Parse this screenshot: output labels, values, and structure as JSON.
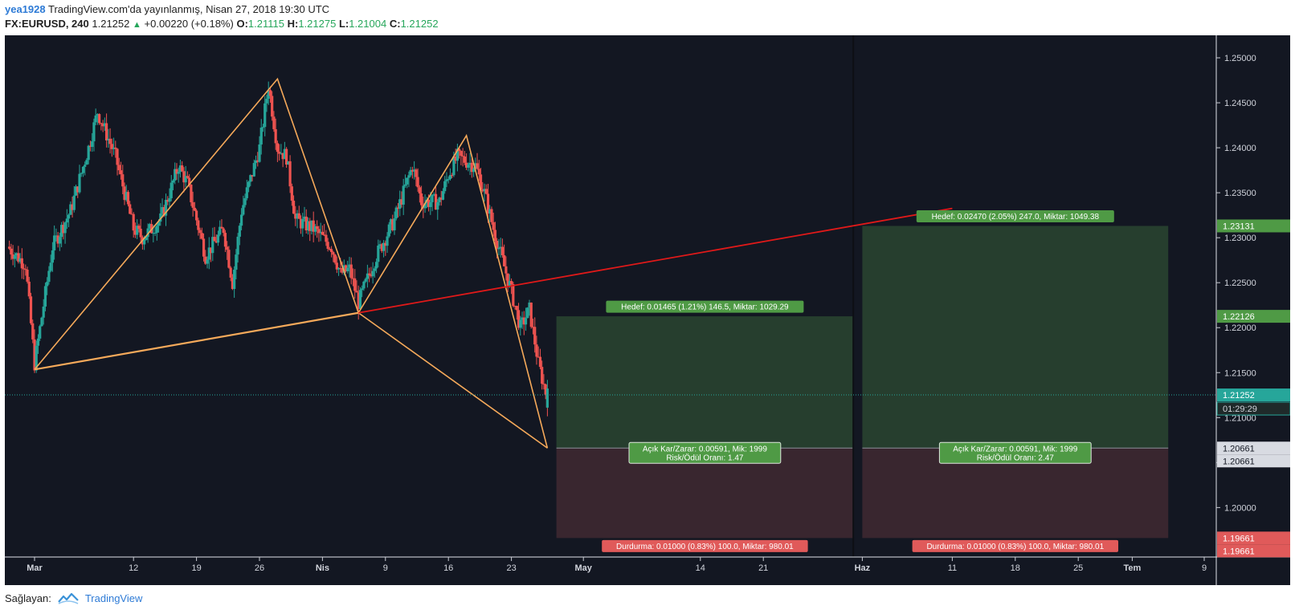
{
  "header": {
    "user": "yea1928",
    "published": "TradingView.com'da yayınlanmış, Nisan 27, 2018 19:30 UTC",
    "symbol": "FX:EURUSD, 240",
    "last": "1.21252",
    "change": "+0.00220 (+0.18%)",
    "o_label": "O:",
    "o": "1.21115",
    "h_label": "H:",
    "h": "1.21275",
    "l_label": "L:",
    "l": "1.21004",
    "c_label": "C:",
    "c": "1.21252"
  },
  "footer": {
    "provided_by": "Sağlayan:",
    "brand": "TradingView"
  },
  "colors": {
    "background": "#131722",
    "up": "#26a69a",
    "down": "#ef5350",
    "pattern": "#f5a95a",
    "trendline": "#e01919",
    "target_zone": "#27402f",
    "stop_zone": "#3b2730",
    "target_label": "#4f9a45",
    "stop_label": "#e05a5a"
  },
  "chart_data": {
    "type": "candlestick",
    "instrument": "FX:EURUSD",
    "timeframe": "240",
    "ylim": [
      1.1945,
      1.2525
    ],
    "y_ticks": [
      "1.25000",
      "1.24500",
      "1.24000",
      "1.23500",
      "1.23000",
      "1.22500",
      "1.22000",
      "1.21500",
      "1.21000",
      "1.20500",
      "1.20000"
    ],
    "x_axis": {
      "start": "2018-03-01",
      "end": "2018-07-09",
      "ticks": [
        {
          "date": "2018-03-01",
          "label": "Mar",
          "bold": true
        },
        {
          "date": "2018-03-12",
          "label": "12"
        },
        {
          "date": "2018-03-19",
          "label": "19"
        },
        {
          "date": "2018-03-26",
          "label": "26"
        },
        {
          "date": "2018-04-02",
          "label": "Nis",
          "bold": true
        },
        {
          "date": "2018-04-09",
          "label": "9"
        },
        {
          "date": "2018-04-16",
          "label": "16"
        },
        {
          "date": "2018-04-23",
          "label": "23"
        },
        {
          "date": "2018-05-01",
          "label": "May",
          "bold": true
        },
        {
          "date": "2018-05-14",
          "label": "14"
        },
        {
          "date": "2018-05-21",
          "label": "21"
        },
        {
          "date": "2018-06-01",
          "label": "Haz",
          "bold": true
        },
        {
          "date": "2018-06-11",
          "label": "11"
        },
        {
          "date": "2018-06-18",
          "label": "18"
        },
        {
          "date": "2018-06-25",
          "label": "25"
        },
        {
          "date": "2018-07-01",
          "label": "Tem",
          "bold": true
        },
        {
          "date": "2018-07-09",
          "label": "9"
        }
      ]
    },
    "price_path": [
      [
        "2018-02-26",
        1.229
      ],
      [
        "2018-02-28",
        1.227
      ],
      [
        "2018-03-01",
        1.216
      ],
      [
        "2018-03-03",
        1.229
      ],
      [
        "2018-03-05",
        1.233
      ],
      [
        "2018-03-07",
        1.24
      ],
      [
        "2018-03-08",
        1.244
      ],
      [
        "2018-03-10",
        1.239
      ],
      [
        "2018-03-12",
        1.231
      ],
      [
        "2018-03-13",
        1.23
      ],
      [
        "2018-03-15",
        1.232
      ],
      [
        "2018-03-17",
        1.238
      ],
      [
        "2018-03-18",
        1.236
      ],
      [
        "2018-03-19",
        1.232
      ],
      [
        "2018-03-20",
        1.228
      ],
      [
        "2018-03-22",
        1.231
      ],
      [
        "2018-03-23",
        1.225
      ],
      [
        "2018-03-24",
        1.233
      ],
      [
        "2018-03-26",
        1.24
      ],
      [
        "2018-03-27",
        1.247
      ],
      [
        "2018-03-28",
        1.24
      ],
      [
        "2018-03-29",
        1.239
      ],
      [
        "2018-03-30",
        1.232
      ],
      [
        "2018-04-01",
        1.231
      ],
      [
        "2018-04-03",
        1.229
      ],
      [
        "2018-04-04",
        1.226
      ],
      [
        "2018-04-05",
        1.2265
      ],
      [
        "2018-04-06",
        1.2228
      ],
      [
        "2018-04-08",
        1.228
      ],
      [
        "2018-04-10",
        1.232
      ],
      [
        "2018-04-12",
        1.238
      ],
      [
        "2018-04-13",
        1.234
      ],
      [
        "2018-04-15",
        1.234
      ],
      [
        "2018-04-16",
        1.237
      ],
      [
        "2018-04-17",
        1.239
      ],
      [
        "2018-04-19",
        1.238
      ],
      [
        "2018-04-20",
        1.235
      ],
      [
        "2018-04-21",
        1.231
      ],
      [
        "2018-04-23",
        1.224
      ],
      [
        "2018-04-24",
        1.22
      ],
      [
        "2018-04-25",
        1.222
      ],
      [
        "2018-04-26",
        1.216
      ],
      [
        "2018-04-27",
        1.212
      ],
      [
        "2018-04-27",
        1.2125
      ]
    ],
    "last_price": 1.21252,
    "countdown": "01:29:29",
    "pattern_points": [
      [
        "2018-03-01",
        1.21535
      ],
      [
        "2018-03-28",
        1.24765
      ],
      [
        "2018-04-06",
        1.22165
      ],
      [
        "2018-04-18",
        1.24135
      ],
      [
        "2018-04-27",
        1.20661
      ]
    ],
    "pattern_base": [
      [
        "2018-03-01",
        1.21535
      ],
      [
        "2018-04-06",
        1.22165
      ]
    ],
    "trendline": [
      [
        "2018-04-06",
        1.22165
      ],
      [
        "2018-06-11",
        1.23326
      ]
    ],
    "positions": [
      {
        "start": "2018-04-28",
        "end": "2018-05-31",
        "entry": 1.20661,
        "target": 1.22126,
        "stop": 1.19661,
        "target_label": "Hedef: 0.01465 (1.21%) 146.5, Miktar: 1029.29",
        "stop_label": "Durdurma: 0.01000 (0.83%) 100.0, Miktar: 980.01",
        "pnl_label": "Açık Kar/Zarar: 0.00591, Mik: 1999",
        "rr_label": "Risk/Ödül Oranı: 1.47"
      },
      {
        "start": "2018-06-01",
        "end": "2018-07-05",
        "entry": 1.20661,
        "target": 1.23131,
        "stop": 1.19661,
        "target_label": "Hedef: 0.02470 (2.05%) 247.0, Miktar: 1049.38",
        "stop_label": "Durdurma: 0.01000 (0.83%) 100.0, Miktar: 980.01",
        "pnl_label": "Açık Kar/Zarar: 0.00591, Mik: 1999",
        "rr_label": "Risk/Ödül Oranı: 2.47"
      }
    ],
    "price_labels": [
      {
        "value": "1.23131",
        "kind": "target"
      },
      {
        "value": "1.22126",
        "kind": "target"
      },
      {
        "value": "1.21252",
        "kind": "last"
      },
      {
        "value": "1.20661",
        "kind": "entry"
      },
      {
        "value": "1.20661",
        "kind": "entry"
      },
      {
        "value": "1.19661",
        "kind": "stop"
      },
      {
        "value": "1.19661",
        "kind": "stop"
      }
    ]
  }
}
